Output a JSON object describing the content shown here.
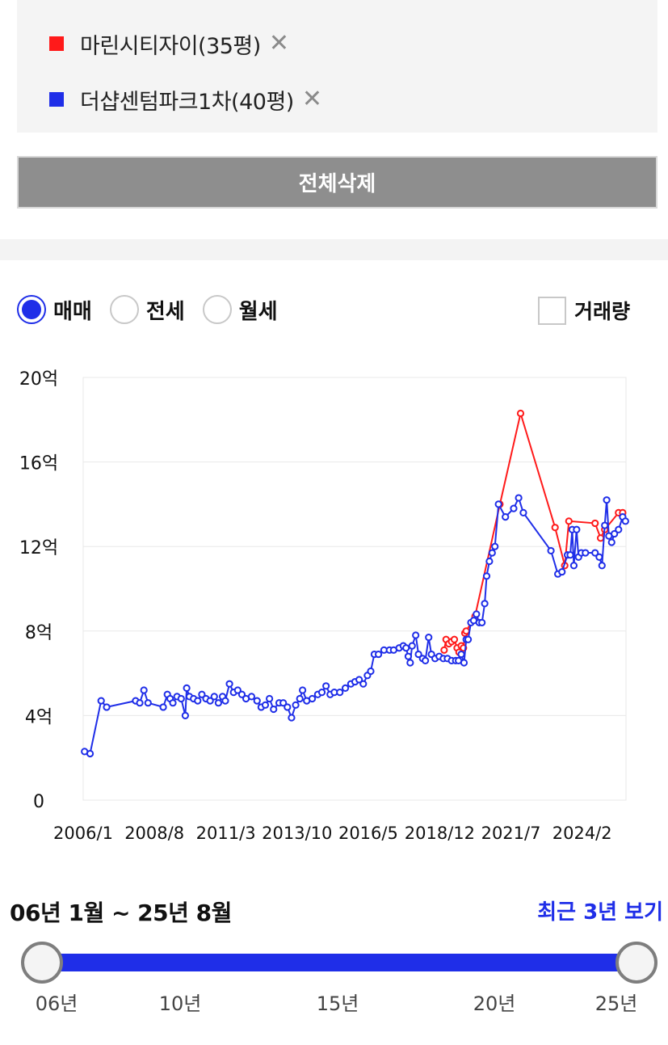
{
  "compare": {
    "items": [
      {
        "name": "마린시티자이(35평)",
        "color": "#ff1a1a"
      },
      {
        "name": "더샵센텀파크1차(40평)",
        "color": "#1f2ee8"
      }
    ],
    "remove_icon": "✕",
    "delete_all_label": "전체삭제"
  },
  "deal_types": [
    {
      "label": "매매",
      "selected": true
    },
    {
      "label": "전세",
      "selected": false
    },
    {
      "label": "월세",
      "selected": false
    }
  ],
  "volume_label": "거래량",
  "chart_data": {
    "type": "line",
    "y_unit": "억",
    "y_ticks": [
      "0",
      "4억",
      "8억",
      "12억",
      "16억",
      "20억"
    ],
    "ylim": [
      0,
      20
    ],
    "xlim": [
      2006.0,
      2025.67
    ],
    "x_tick_labels": [
      "2006/1",
      "2008/8",
      "2011/3",
      "2013/10",
      "2016/5",
      "2018/12",
      "2021/7",
      "2024/2"
    ],
    "x_tick_values": [
      2006.0,
      2008.58,
      2011.17,
      2013.75,
      2016.33,
      2018.92,
      2021.5,
      2024.08
    ],
    "grid": true,
    "series": [
      {
        "name": "마린시티자이(35평)",
        "color": "#ff1a1a",
        "points": [
          [
            2019.08,
            7.1
          ],
          [
            2019.15,
            7.6
          ],
          [
            2019.25,
            7.4
          ],
          [
            2019.35,
            7.5
          ],
          [
            2019.45,
            7.6
          ],
          [
            2019.55,
            7.2
          ],
          [
            2019.62,
            7.0
          ],
          [
            2019.7,
            7.3
          ],
          [
            2019.78,
            7.2
          ],
          [
            2019.83,
            7.9
          ],
          [
            2019.88,
            8.0
          ],
          [
            2020.2,
            8.7
          ],
          [
            2021.1,
            14.0
          ],
          [
            2021.85,
            18.3
          ],
          [
            2023.1,
            12.9
          ],
          [
            2023.45,
            11.1
          ],
          [
            2023.6,
            13.2
          ],
          [
            2024.55,
            13.1
          ],
          [
            2024.75,
            12.4
          ],
          [
            2024.9,
            12.8
          ],
          [
            2025.4,
            13.6
          ],
          [
            2025.55,
            13.6
          ]
        ]
      },
      {
        "name": "더샵센텀파크1차(40평)",
        "color": "#1f2ee8",
        "points": [
          [
            2006.05,
            2.3
          ],
          [
            2006.25,
            2.2
          ],
          [
            2006.65,
            4.7
          ],
          [
            2006.85,
            4.4
          ],
          [
            2007.9,
            4.7
          ],
          [
            2008.05,
            4.6
          ],
          [
            2008.2,
            5.2
          ],
          [
            2008.35,
            4.6
          ],
          [
            2008.9,
            4.4
          ],
          [
            2009.05,
            5.0
          ],
          [
            2009.15,
            4.8
          ],
          [
            2009.25,
            4.6
          ],
          [
            2009.4,
            4.9
          ],
          [
            2009.55,
            4.8
          ],
          [
            2009.7,
            4.0
          ],
          [
            2009.75,
            5.3
          ],
          [
            2009.85,
            4.9
          ],
          [
            2010.0,
            4.8
          ],
          [
            2010.15,
            4.7
          ],
          [
            2010.3,
            5.0
          ],
          [
            2010.45,
            4.8
          ],
          [
            2010.6,
            4.7
          ],
          [
            2010.75,
            4.9
          ],
          [
            2010.9,
            4.6
          ],
          [
            2011.05,
            4.9
          ],
          [
            2011.15,
            4.7
          ],
          [
            2011.3,
            5.5
          ],
          [
            2011.45,
            5.1
          ],
          [
            2011.6,
            5.2
          ],
          [
            2011.75,
            5.0
          ],
          [
            2011.9,
            4.8
          ],
          [
            2012.1,
            4.9
          ],
          [
            2012.3,
            4.7
          ],
          [
            2012.45,
            4.4
          ],
          [
            2012.6,
            4.5
          ],
          [
            2012.75,
            4.8
          ],
          [
            2012.9,
            4.3
          ],
          [
            2013.1,
            4.6
          ],
          [
            2013.25,
            4.6
          ],
          [
            2013.4,
            4.4
          ],
          [
            2013.55,
            3.9
          ],
          [
            2013.7,
            4.5
          ],
          [
            2013.85,
            4.8
          ],
          [
            2013.95,
            5.2
          ],
          [
            2014.1,
            4.7
          ],
          [
            2014.3,
            4.8
          ],
          [
            2014.5,
            5.0
          ],
          [
            2014.65,
            5.1
          ],
          [
            2014.8,
            5.4
          ],
          [
            2014.95,
            5.0
          ],
          [
            2015.1,
            5.1
          ],
          [
            2015.3,
            5.1
          ],
          [
            2015.5,
            5.3
          ],
          [
            2015.7,
            5.5
          ],
          [
            2015.85,
            5.6
          ],
          [
            2016.0,
            5.7
          ],
          [
            2016.15,
            5.5
          ],
          [
            2016.3,
            5.9
          ],
          [
            2016.42,
            6.1
          ],
          [
            2016.55,
            6.9
          ],
          [
            2016.7,
            6.9
          ],
          [
            2016.9,
            7.1
          ],
          [
            2017.1,
            7.1
          ],
          [
            2017.25,
            7.1
          ],
          [
            2017.45,
            7.2
          ],
          [
            2017.6,
            7.3
          ],
          [
            2017.7,
            7.2
          ],
          [
            2017.78,
            6.8
          ],
          [
            2017.85,
            6.5
          ],
          [
            2017.92,
            7.3
          ],
          [
            2018.05,
            7.8
          ],
          [
            2018.15,
            6.9
          ],
          [
            2018.3,
            6.7
          ],
          [
            2018.4,
            6.6
          ],
          [
            2018.52,
            7.7
          ],
          [
            2018.62,
            6.9
          ],
          [
            2018.75,
            6.7
          ],
          [
            2018.9,
            6.8
          ],
          [
            2019.05,
            6.7
          ],
          [
            2019.2,
            6.7
          ],
          [
            2019.35,
            6.6
          ],
          [
            2019.5,
            6.6
          ],
          [
            2019.6,
            6.6
          ],
          [
            2019.7,
            6.9
          ],
          [
            2019.8,
            6.5
          ],
          [
            2019.88,
            7.6
          ],
          [
            2019.95,
            7.6
          ],
          [
            2020.05,
            8.4
          ],
          [
            2020.15,
            8.5
          ],
          [
            2020.25,
            8.8
          ],
          [
            2020.35,
            8.4
          ],
          [
            2020.45,
            8.4
          ],
          [
            2020.55,
            9.3
          ],
          [
            2020.62,
            10.6
          ],
          [
            2020.72,
            11.3
          ],
          [
            2020.82,
            11.7
          ],
          [
            2020.92,
            12.0
          ],
          [
            2021.05,
            14.0
          ],
          [
            2021.3,
            13.4
          ],
          [
            2021.6,
            13.8
          ],
          [
            2021.78,
            14.3
          ],
          [
            2021.95,
            13.6
          ],
          [
            2022.95,
            11.8
          ],
          [
            2023.2,
            10.7
          ],
          [
            2023.35,
            10.8
          ],
          [
            2023.55,
            11.6
          ],
          [
            2023.65,
            11.6
          ],
          [
            2023.72,
            12.8
          ],
          [
            2023.78,
            11.1
          ],
          [
            2023.88,
            12.8
          ],
          [
            2023.95,
            11.5
          ],
          [
            2024.05,
            11.7
          ],
          [
            2024.2,
            11.7
          ],
          [
            2024.55,
            11.7
          ],
          [
            2024.7,
            11.5
          ],
          [
            2024.8,
            11.1
          ],
          [
            2024.9,
            13.0
          ],
          [
            2024.97,
            14.2
          ],
          [
            2025.05,
            12.5
          ],
          [
            2025.15,
            12.2
          ],
          [
            2025.25,
            12.6
          ],
          [
            2025.4,
            12.8
          ],
          [
            2025.55,
            13.4
          ],
          [
            2025.65,
            13.2
          ]
        ]
      }
    ]
  },
  "range": {
    "label": "06년 1월 ~ 25년 8월",
    "recent_label": "최근 3년 보기",
    "ticks": [
      "06년",
      "10년",
      "15년",
      "20년",
      "25년"
    ]
  }
}
